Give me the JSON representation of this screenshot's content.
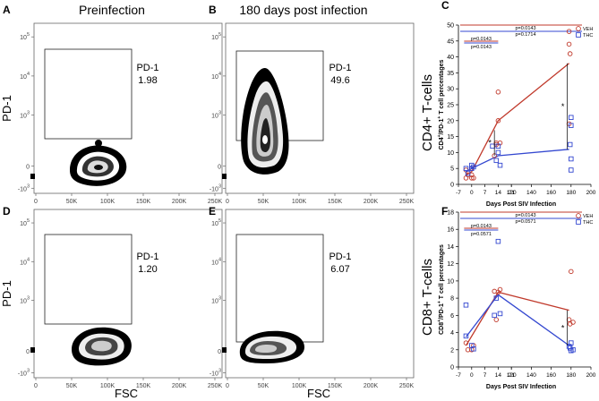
{
  "panels": {
    "A": {
      "letter": "A",
      "title": "Preinfection",
      "gate_label": "PD-1",
      "gate_value": "1.98",
      "y_label": "PD-1"
    },
    "B": {
      "letter": "B",
      "title": "180 days post infection",
      "gate_label": "PD-1",
      "gate_value": "49.6"
    },
    "D": {
      "letter": "D",
      "gate_label": "PD-1",
      "gate_value": "1.20",
      "y_label": "PD-1",
      "x_label": "FSC"
    },
    "E": {
      "letter": "E",
      "gate_label": "PD-1",
      "gate_value": "6.07",
      "x_label": "FSC"
    },
    "C": {
      "letter": "C",
      "row_label": "CD4+ T-cells"
    },
    "F": {
      "letter": "F",
      "row_label": "CD8+ T-cells"
    }
  },
  "flow_axes": {
    "y_ticks": [
      {
        "base": "10",
        "exp": "5"
      },
      {
        "base": "10",
        "exp": "4"
      },
      {
        "base": "10",
        "exp": "3"
      },
      {
        "base": "0",
        "exp": ""
      },
      {
        "base": "-10",
        "exp": "3"
      }
    ],
    "x_ticks": [
      "0",
      "50K",
      "100K",
      "150K",
      "200K",
      "250K"
    ]
  },
  "colors": {
    "veh": "#c0392b",
    "thc": "#3448d0"
  },
  "chart_data": [
    {
      "panel": "C",
      "type": "scatter",
      "title": "CD4+ T-cells",
      "xlabel": "Days Post  SIV Infection",
      "ylabel_main": "CD4",
      "ylabel_sup": "+",
      "ylabel_mid": "/PD-1",
      "ylabel_sup2": "+",
      "ylabel_tail": " T cell percentages",
      "xlim": [
        -7,
        200
      ],
      "ylim": [
        0,
        50
      ],
      "xticks": [
        -7,
        0,
        7,
        14,
        21,
        120,
        140,
        160,
        180,
        200
      ],
      "yticks": [
        0,
        5,
        10,
        15,
        20,
        25,
        30,
        35,
        40,
        45,
        50
      ],
      "series": [
        {
          "name": "VEH",
          "marker": "circle",
          "points": [
            [
              -3,
              2.0
            ],
            [
              -3,
              4.5
            ],
            [
              -2,
              3.0
            ],
            [
              0,
              2.0
            ],
            [
              0,
              3.0
            ],
            [
              0,
              5.0
            ],
            [
              1,
              2.0
            ],
            [
              12,
              9.0
            ],
            [
              13,
              13.0
            ],
            [
              13,
              12.5
            ],
            [
              14,
              20.0
            ],
            [
              14,
              29.0
            ],
            [
              15,
              13.0
            ],
            [
              178,
              44.0
            ],
            [
              178,
              48.0
            ],
            [
              179,
              41.0
            ],
            [
              178,
              19.0
            ]
          ],
          "mean_line": [
            [
              -3,
              3
            ],
            [
              0,
              4
            ],
            [
              14,
              20
            ],
            [
              178,
              38
            ]
          ]
        },
        {
          "name": "THC",
          "marker": "square",
          "points": [
            [
              -3,
              5.0
            ],
            [
              -2,
              3.5
            ],
            [
              0,
              5.0
            ],
            [
              0,
              6.0
            ],
            [
              1,
              5.5
            ],
            [
              11,
              12.0
            ],
            [
              13,
              7.5
            ],
            [
              14,
              10.0
            ],
            [
              14,
              12.0
            ],
            [
              15,
              6.0
            ],
            [
              180,
              21.0
            ],
            [
              180,
              18.5
            ],
            [
              179,
              12.5
            ],
            [
              180,
              8.0
            ],
            [
              180,
              4.5
            ]
          ],
          "mean_line": [
            [
              -3,
              4
            ],
            [
              0,
              5
            ],
            [
              14,
              9
            ],
            [
              178,
              11
            ]
          ]
        }
      ],
      "annotations": {
        "top_p1": "p=0.0143",
        "top_p2": "p=0.1714",
        "mid_p1": "p=0.0143",
        "mid_p2": "p=0.0143",
        "star1": "*",
        "star2": "*"
      },
      "legend": {
        "veh": "VEH",
        "thc": "THC",
        "placement": "top-right"
      }
    },
    {
      "panel": "F",
      "type": "scatter",
      "title": "CD8+ T-cells",
      "xlabel": "Days Post  SIV Infection",
      "ylabel_main": "CD8",
      "ylabel_sup": "+",
      "ylabel_mid": "/PD-1",
      "ylabel_sup2": "+",
      "ylabel_tail": " T cell percentages",
      "xlim": [
        -7,
        200
      ],
      "ylim": [
        0,
        18
      ],
      "xticks": [
        -7,
        0,
        7,
        14,
        21,
        120,
        140,
        160,
        180,
        200
      ],
      "yticks": [
        0,
        2,
        4,
        6,
        8,
        10,
        12,
        14,
        16,
        18
      ],
      "series": [
        {
          "name": "VEH",
          "marker": "circle",
          "points": [
            [
              -3,
              2.8
            ],
            [
              -2,
              2.0
            ],
            [
              0,
              2.0
            ],
            [
              1,
              2.5
            ],
            [
              12,
              8.8
            ],
            [
              13,
              5.5
            ],
            [
              14,
              8.7
            ],
            [
              15,
              9.0
            ],
            [
              178,
              5.5
            ],
            [
              179,
              5.0
            ],
            [
              182,
              5.2
            ],
            [
              180,
              11.1
            ]
          ],
          "mean_line": [
            [
              -3,
              2.5
            ],
            [
              14,
              8.7
            ],
            [
              178,
              6.6
            ]
          ]
        },
        {
          "name": "THC",
          "marker": "square",
          "points": [
            [
              -3,
              7.2
            ],
            [
              -3,
              3.6
            ],
            [
              0,
              2.5
            ],
            [
              1,
              2.1
            ],
            [
              12,
              6.0
            ],
            [
              13,
              8.0
            ],
            [
              14,
              14.6
            ],
            [
              15,
              6.2
            ],
            [
              178,
              2.4
            ],
            [
              179,
              2.2
            ],
            [
              180,
              1.9
            ],
            [
              182,
              2.0
            ],
            [
              180,
              2.8
            ]
          ],
          "mean_line": [
            [
              -3,
              3.5
            ],
            [
              14,
              8.4
            ],
            [
              178,
              2.5
            ]
          ]
        }
      ],
      "annotations": {
        "top_p1": "p=0.0143",
        "top_p2": "p=0.0571",
        "mid_p1": "p=0.0143",
        "mid_p2": "p=0.0571",
        "star1": "*"
      },
      "legend": {
        "veh": "VEH",
        "thc": "THC",
        "placement": "top-right"
      }
    }
  ]
}
